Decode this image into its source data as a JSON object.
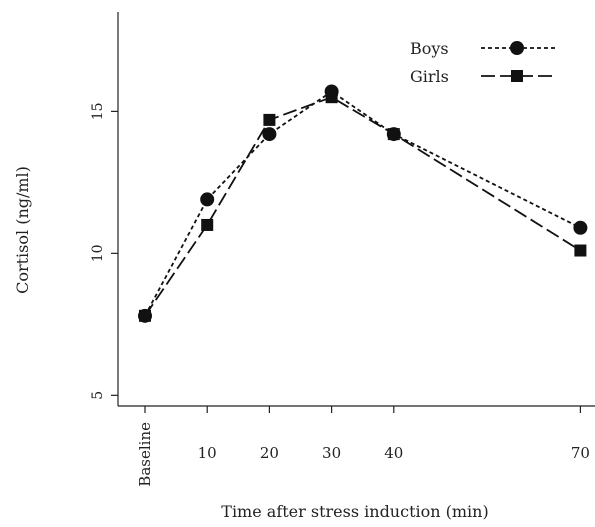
{
  "chart_data": {
    "type": "line",
    "xlabel": "Time after stress induction (min)",
    "ylabel": "Cortisol (ng/ml)",
    "ylim": [
      4.8,
      18.5
    ],
    "y_ticks": [
      5,
      10,
      15
    ],
    "categories": [
      "Baseline",
      "10",
      "20",
      "30",
      "40",
      "70"
    ],
    "x": [
      0,
      10,
      20,
      30,
      40,
      70
    ],
    "grid": false,
    "legend_position": "top-right",
    "series": [
      {
        "name": "Boys",
        "values": [
          7.8,
          11.9,
          14.2,
          15.7,
          14.2,
          10.9
        ],
        "marker": "circle",
        "line_style": "short-dash",
        "color": "#111111"
      },
      {
        "name": "Girls",
        "values": [
          7.8,
          11.0,
          14.7,
          15.5,
          14.2,
          10.1
        ],
        "marker": "square",
        "line_style": "long-dash",
        "color": "#111111"
      }
    ]
  }
}
